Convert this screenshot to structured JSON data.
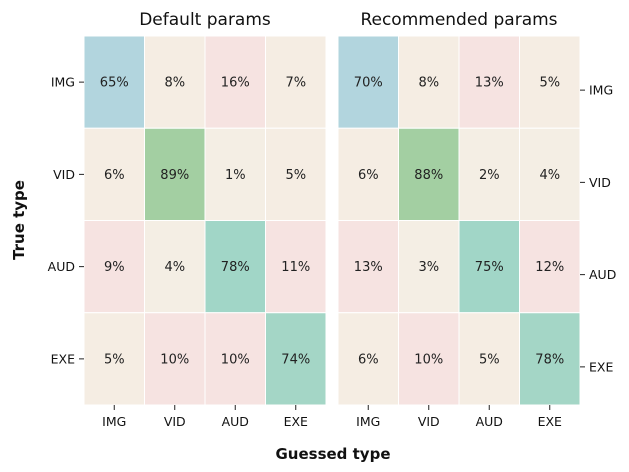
{
  "chart_data": [
    {
      "type": "heatmap",
      "title": "Default params",
      "x_categories": [
        "IMG",
        "VID",
        "AUD",
        "EXE"
      ],
      "y_categories": [
        "IMG",
        "VID",
        "AUD",
        "EXE"
      ],
      "values": [
        [
          65,
          8,
          16,
          7
        ],
        [
          6,
          89,
          1,
          5
        ],
        [
          9,
          4,
          78,
          11
        ],
        [
          5,
          10,
          10,
          74
        ]
      ],
      "value_suffix": "%",
      "y_tick_side": "left",
      "colorbar": false
    },
    {
      "type": "heatmap",
      "title": "Recommended params",
      "x_categories": [
        "IMG",
        "VID",
        "AUD",
        "EXE"
      ],
      "y_categories": [
        "IMG",
        "VID",
        "AUD",
        "EXE"
      ],
      "values": [
        [
          70,
          8,
          13,
          5
        ],
        [
          6,
          88,
          2,
          4
        ],
        [
          13,
          3,
          75,
          12
        ],
        [
          6,
          10,
          5,
          78
        ]
      ],
      "value_suffix": "%",
      "y_tick_side": "right",
      "colorbar": false
    }
  ],
  "xlabel": "Guessed type",
  "ylabel": "True type",
  "cell_colors": {
    "IMG": "#b2d5de",
    "VID": "#a3cfa2",
    "AUD": "#a1d6c7",
    "EXE": "#a4d6c6",
    "low_pink": "#f6e3e1",
    "low_cream": "#f5ede3"
  }
}
